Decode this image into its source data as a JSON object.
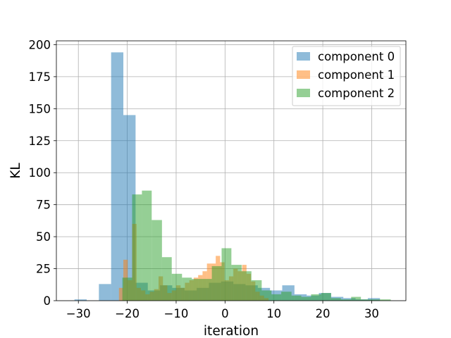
{
  "chart_data": {
    "type": "bar",
    "xlabel": "iteration",
    "ylabel": "KL",
    "xlim": [
      -34.5,
      37
    ],
    "ylim": [
      0,
      203
    ],
    "xticks": [
      -30,
      -20,
      -10,
      0,
      10,
      20,
      30
    ],
    "xtick_labels": [
      "−30",
      "−20",
      "−10",
      "0",
      "10",
      "20",
      "30"
    ],
    "yticks": [
      0,
      25,
      50,
      75,
      100,
      125,
      150,
      175,
      200
    ],
    "ytick_labels": [
      "0",
      "25",
      "50",
      "75",
      "100",
      "125",
      "150",
      "175",
      "200"
    ],
    "grid": true,
    "legend_position": "top-right",
    "series": [
      {
        "name": "component 0",
        "color": "#1f77b4",
        "bins": [
          {
            "x0": -30.8,
            "x1": -28.3,
            "count": 1
          },
          {
            "x0": -25.8,
            "x1": -23.3,
            "count": 13
          },
          {
            "x0": -23.3,
            "x1": -20.8,
            "count": 194
          },
          {
            "x0": -20.8,
            "x1": -18.3,
            "count": 145
          },
          {
            "x0": -18.3,
            "x1": -15.8,
            "count": 14
          },
          {
            "x0": -15.8,
            "x1": -13.3,
            "count": 8
          },
          {
            "x0": -13.3,
            "x1": -10.8,
            "count": 12
          },
          {
            "x0": -10.8,
            "x1": -8.3,
            "count": 10
          },
          {
            "x0": -8.3,
            "x1": -5.8,
            "count": 8
          },
          {
            "x0": -5.8,
            "x1": -3.3,
            "count": 10
          },
          {
            "x0": -3.3,
            "x1": -0.8,
            "count": 14
          },
          {
            "x0": -0.8,
            "x1": 1.7,
            "count": 15
          },
          {
            "x0": 1.7,
            "x1": 4.2,
            "count": 13
          },
          {
            "x0": 4.2,
            "x1": 6.7,
            "count": 12
          },
          {
            "x0": 6.7,
            "x1": 9.2,
            "count": 10
          },
          {
            "x0": 9.2,
            "x1": 11.7,
            "count": 8
          },
          {
            "x0": 11.7,
            "x1": 14.2,
            "count": 12
          },
          {
            "x0": 14.2,
            "x1": 16.7,
            "count": 5
          },
          {
            "x0": 16.7,
            "x1": 19.2,
            "count": 4
          },
          {
            "x0": 19.2,
            "x1": 21.7,
            "count": 6
          },
          {
            "x0": 21.7,
            "x1": 24.2,
            "count": 3
          },
          {
            "x0": 24.2,
            "x1": 26.7,
            "count": 2
          },
          {
            "x0": 26.7,
            "x1": 29.2,
            "count": 1
          },
          {
            "x0": 29.2,
            "x1": 31.7,
            "count": 2
          }
        ]
      },
      {
        "name": "component 1",
        "color": "#ff7f0e",
        "bins": [
          {
            "x0": -21.7,
            "x1": -20.8,
            "count": 10
          },
          {
            "x0": -20.8,
            "x1": -19.9,
            "count": 32
          },
          {
            "x0": -19.9,
            "x1": -19.0,
            "count": 16
          },
          {
            "x0": -19.0,
            "x1": -18.1,
            "count": 60
          },
          {
            "x0": -18.1,
            "x1": -17.2,
            "count": 10
          },
          {
            "x0": -17.2,
            "x1": -16.3,
            "count": 8
          },
          {
            "x0": -16.3,
            "x1": -15.4,
            "count": 5
          },
          {
            "x0": -15.4,
            "x1": -14.5,
            "count": 7
          },
          {
            "x0": -14.5,
            "x1": -13.6,
            "count": 9
          },
          {
            "x0": -13.6,
            "x1": -12.7,
            "count": 19
          },
          {
            "x0": -12.7,
            "x1": -11.8,
            "count": 12
          },
          {
            "x0": -11.8,
            "x1": -10.9,
            "count": 6
          },
          {
            "x0": -10.9,
            "x1": -10.0,
            "count": 8
          },
          {
            "x0": -10.0,
            "x1": -9.1,
            "count": 12
          },
          {
            "x0": -9.1,
            "x1": -8.2,
            "count": 10
          },
          {
            "x0": -8.2,
            "x1": -7.3,
            "count": 14
          },
          {
            "x0": -7.3,
            "x1": -6.4,
            "count": 16
          },
          {
            "x0": -6.4,
            "x1": -5.5,
            "count": 18
          },
          {
            "x0": -5.5,
            "x1": -4.6,
            "count": 20
          },
          {
            "x0": -4.6,
            "x1": -3.7,
            "count": 23
          },
          {
            "x0": -3.7,
            "x1": -2.8,
            "count": 29
          },
          {
            "x0": -2.8,
            "x1": -1.9,
            "count": 29
          },
          {
            "x0": -1.9,
            "x1": -1.0,
            "count": 35
          },
          {
            "x0": -1.0,
            "x1": -0.1,
            "count": 30
          },
          {
            "x0": -0.1,
            "x1": 0.8,
            "count": 16
          },
          {
            "x0": 0.8,
            "x1": 1.7,
            "count": 19
          },
          {
            "x0": 1.7,
            "x1": 2.6,
            "count": 25
          },
          {
            "x0": 2.6,
            "x1": 3.5,
            "count": 23
          },
          {
            "x0": 3.5,
            "x1": 4.4,
            "count": 28
          },
          {
            "x0": 4.4,
            "x1": 5.3,
            "count": 21
          },
          {
            "x0": 5.3,
            "x1": 6.2,
            "count": 15
          },
          {
            "x0": 6.2,
            "x1": 7.1,
            "count": 7
          },
          {
            "x0": 7.1,
            "x1": 8.0,
            "count": 4
          },
          {
            "x0": 8.0,
            "x1": 8.9,
            "count": 2
          }
        ]
      },
      {
        "name": "component 2",
        "color": "#2ca02c",
        "bins": [
          {
            "x0": -21.0,
            "x1": -19.0,
            "count": 18
          },
          {
            "x0": -19.0,
            "x1": -17.0,
            "count": 83
          },
          {
            "x0": -17.0,
            "x1": -15.0,
            "count": 86
          },
          {
            "x0": -15.0,
            "x1": -12.9,
            "count": 63
          },
          {
            "x0": -12.9,
            "x1": -10.9,
            "count": 34
          },
          {
            "x0": -10.9,
            "x1": -8.8,
            "count": 21
          },
          {
            "x0": -8.8,
            "x1": -6.8,
            "count": 18
          },
          {
            "x0": -6.8,
            "x1": -4.8,
            "count": 17
          },
          {
            "x0": -4.8,
            "x1": -2.7,
            "count": 17
          },
          {
            "x0": -2.7,
            "x1": -0.7,
            "count": 27
          },
          {
            "x0": -0.7,
            "x1": 1.3,
            "count": 41
          },
          {
            "x0": 1.3,
            "x1": 3.4,
            "count": 28
          },
          {
            "x0": 3.4,
            "x1": 5.4,
            "count": 23
          },
          {
            "x0": 5.4,
            "x1": 7.5,
            "count": 16
          },
          {
            "x0": 7.5,
            "x1": 9.5,
            "count": 8
          },
          {
            "x0": 9.5,
            "x1": 11.5,
            "count": 5
          },
          {
            "x0": 11.5,
            "x1": 13.6,
            "count": 7
          },
          {
            "x0": 13.6,
            "x1": 15.6,
            "count": 4
          },
          {
            "x0": 15.6,
            "x1": 17.6,
            "count": 3
          },
          {
            "x0": 17.6,
            "x1": 19.7,
            "count": 5
          },
          {
            "x0": 19.7,
            "x1": 21.7,
            "count": 6
          },
          {
            "x0": 21.7,
            "x1": 23.7,
            "count": 2
          },
          {
            "x0": 23.7,
            "x1": 25.8,
            "count": 1
          },
          {
            "x0": 25.8,
            "x1": 27.8,
            "count": 3
          },
          {
            "x0": 27.8,
            "x1": 29.8,
            "count": 1
          },
          {
            "x0": 29.8,
            "x1": 31.9,
            "count": 1
          },
          {
            "x0": 31.9,
            "x1": 33.9,
            "count": 1
          }
        ]
      }
    ]
  }
}
